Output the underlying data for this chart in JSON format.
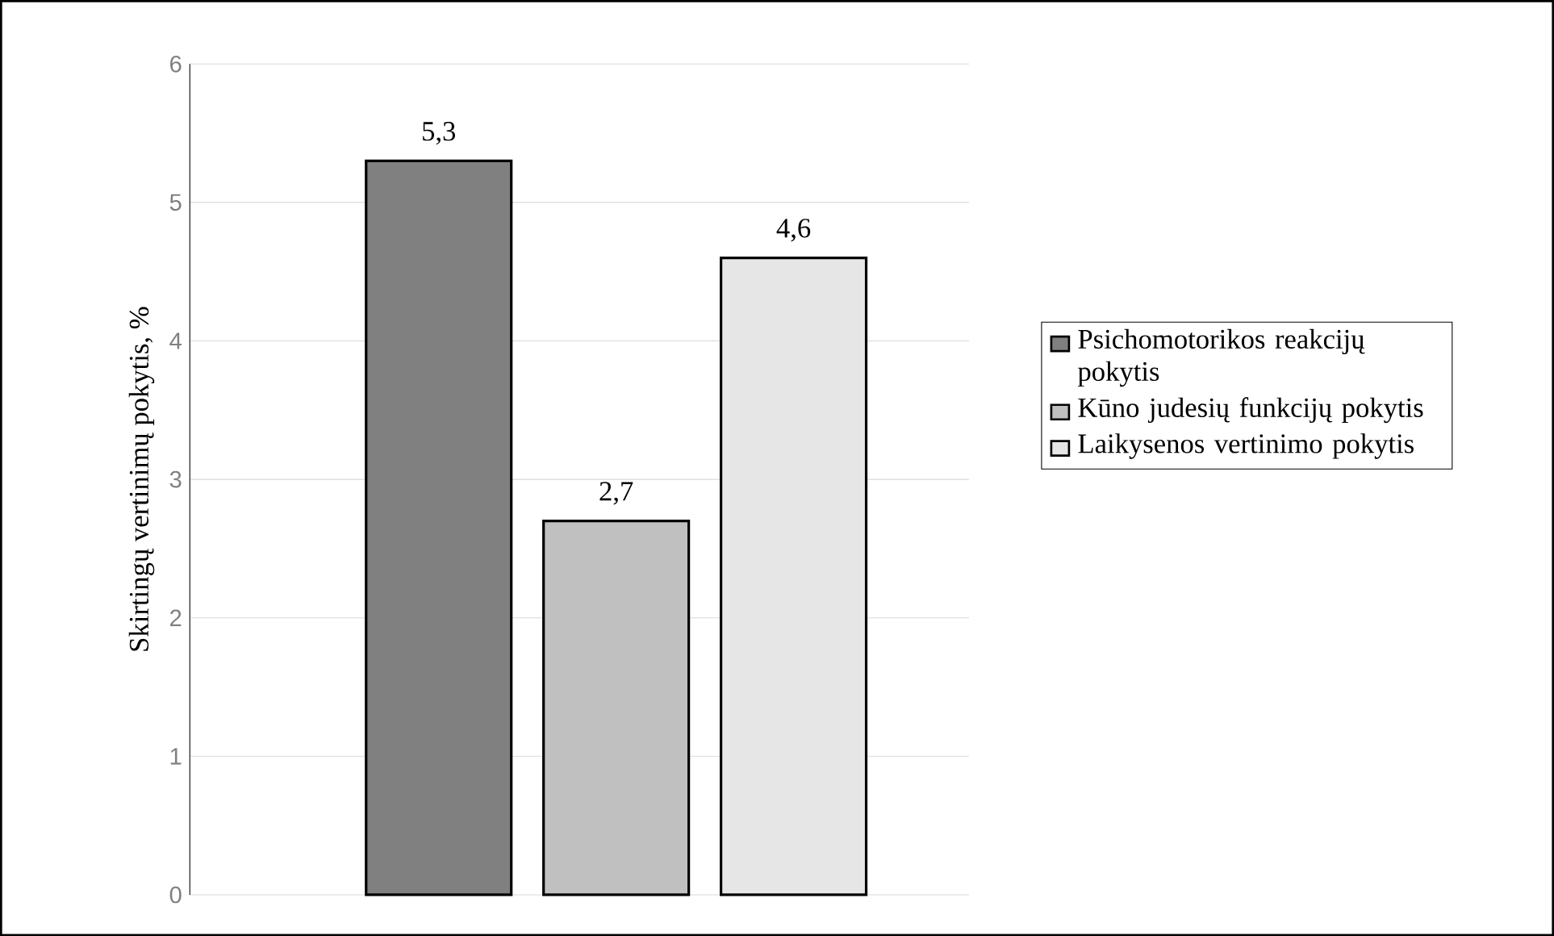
{
  "chart_data": {
    "type": "bar",
    "ylabel": "Skirtingų vertinimų pokytis, %",
    "categories": [
      null
    ],
    "series": [
      {
        "name": "Psichomotorikos reakcijų pokytis",
        "color": "#808080",
        "values": [
          5.3
        ],
        "value_labels": [
          "5,3"
        ]
      },
      {
        "name": "Kūno judesių funkcijų pokytis",
        "color": "#c0c0c0",
        "values": [
          2.7
        ],
        "value_labels": [
          "2,7"
        ]
      },
      {
        "name": "Laikysenos vertinimo pokytis",
        "color": "#e6e6e6",
        "values": [
          4.6
        ],
        "value_labels": [
          "4,6"
        ]
      }
    ],
    "ylim": [
      0,
      6
    ],
    "yticks": [
      0,
      1,
      2,
      3,
      4,
      5,
      6
    ],
    "grid": "y",
    "legend": "right"
  }
}
